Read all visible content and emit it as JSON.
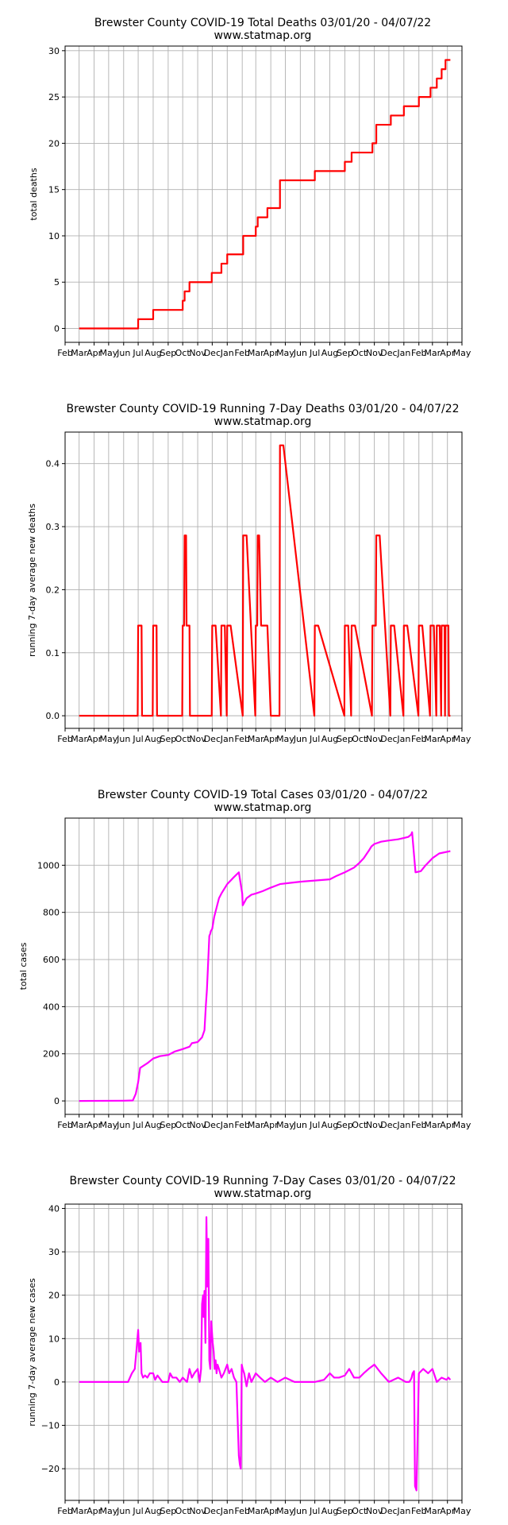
{
  "x_tick_labels": [
    "Feb",
    "Mar",
    "Apr",
    "May",
    "Jun",
    "Jul",
    "Aug",
    "Sep",
    "Oct",
    "Nov",
    "Dec",
    "Jan",
    "Feb",
    "Mar",
    "Apr",
    "May",
    "Jun",
    "Jul",
    "Aug",
    "Sep",
    "Oct",
    "Nov",
    "Dec",
    "Jan",
    "Feb",
    "Mar",
    "Apr",
    "May"
  ],
  "chart_data": [
    {
      "type": "line",
      "title": "Brewster County COVID-19 Total Deaths 03/01/20 - 04/07/22",
      "subtitle": "www.statmap.org",
      "ylabel": "total deaths",
      "xlabel": "",
      "x_range": [
        "2020-02-01",
        "2022-05-01"
      ],
      "ylim": [
        -1.5,
        30.5
      ],
      "yticks": [
        0,
        5,
        10,
        15,
        20,
        25,
        30
      ],
      "ytick_labels": [
        "0",
        "5",
        "10",
        "15",
        "20",
        "25",
        "30"
      ],
      "grid": true,
      "color": "#ff0000",
      "step": true,
      "series": [
        {
          "x": [
            "2020-03-01",
            "2020-07-01",
            "2020-08-01",
            "2020-10-01",
            "2020-10-05",
            "2020-10-15",
            "2020-11-30",
            "2020-12-20",
            "2021-01-01",
            "2021-02-03",
            "2021-03-01",
            "2021-03-05",
            "2021-03-25",
            "2021-04-20",
            "2021-07-01",
            "2021-09-01",
            "2021-09-15",
            "2021-10-28",
            "2021-11-05",
            "2021-12-05",
            "2022-01-01",
            "2022-02-01",
            "2022-02-25",
            "2022-03-10",
            "2022-03-20",
            "2022-03-28",
            "2022-04-07"
          ],
          "y": [
            0,
            1,
            2,
            3,
            4,
            5,
            6,
            7,
            8,
            10,
            11,
            12,
            13,
            16,
            17,
            18,
            19,
            20,
            22,
            23,
            24,
            25,
            26,
            27,
            28,
            29,
            29
          ]
        }
      ]
    },
    {
      "type": "line",
      "title": "Brewster County COVID-19 Running 7-Day Deaths 03/01/20 - 04/07/22",
      "subtitle": "www.statmap.org",
      "ylabel": "running 7-day average new deaths",
      "xlabel": "",
      "x_range": [
        "2020-02-01",
        "2022-05-01"
      ],
      "ylim": [
        -0.02,
        0.45
      ],
      "yticks": [
        0.0,
        0.1,
        0.2,
        0.3,
        0.4
      ],
      "ytick_labels": [
        "0.0",
        "0.1",
        "0.2",
        "0.3",
        "0.4"
      ],
      "grid": true,
      "color": "#ff0000",
      "step": false,
      "series": [
        {
          "x": [
            "2020-03-01",
            "2020-06-30",
            "2020-07-01",
            "2020-07-08",
            "2020-07-09",
            "2020-07-31",
            "2020-08-01",
            "2020-08-08",
            "2020-08-09",
            "2020-09-30",
            "2020-10-01",
            "2020-10-04",
            "2020-10-05",
            "2020-10-08",
            "2020-10-09",
            "2020-10-11",
            "2020-10-12",
            "2020-10-15",
            "2020-10-16",
            "2020-10-22",
            "2020-11-30",
            "2020-12-01",
            "2020-12-08",
            "2020-12-19",
            "2020-12-20",
            "2020-12-27",
            "2020-12-31",
            "2021-01-01",
            "2021-01-08",
            "2021-02-02",
            "2021-02-03",
            "2021-02-10",
            "2021-02-28",
            "2021-03-01",
            "2021-03-04",
            "2021-03-05",
            "2021-03-08",
            "2021-03-12",
            "2021-03-24",
            "2021-03-25",
            "2021-04-01",
            "2021-04-19",
            "2021-04-20",
            "2021-04-27",
            "2021-06-30",
            "2021-07-01",
            "2021-07-08",
            "2021-08-31",
            "2021-09-01",
            "2021-09-08",
            "2021-09-14",
            "2021-09-15",
            "2021-09-22",
            "2021-10-27",
            "2021-10-28",
            "2021-11-04",
            "2021-11-05",
            "2021-11-12",
            "2021-12-04",
            "2021-12-05",
            "2021-12-12",
            "2021-12-31",
            "2022-01-01",
            "2022-01-08",
            "2022-01-31",
            "2022-02-01",
            "2022-02-08",
            "2022-02-24",
            "2022-02-25",
            "2022-03-04",
            "2022-03-09",
            "2022-03-10",
            "2022-03-16",
            "2022-03-19",
            "2022-03-20",
            "2022-03-26",
            "2022-03-27",
            "2022-03-28",
            "2022-04-03",
            "2022-04-04",
            "2022-04-07"
          ],
          "y": [
            0,
            0,
            0.143,
            0.143,
            0,
            0,
            0.143,
            0.143,
            0,
            0,
            0.143,
            0.143,
            0.286,
            0.286,
            0.143,
            0.143,
            0.143,
            0.143,
            0,
            0,
            0,
            0.143,
            0.143,
            0,
            0.143,
            0.143,
            0,
            0.143,
            0.143,
            0,
            0.286,
            0.286,
            0,
            0.143,
            0.143,
            0.286,
            0.286,
            0.143,
            0.143,
            0.143,
            0,
            0,
            0.429,
            0.429,
            0,
            0.143,
            0.143,
            0,
            0.143,
            0.143,
            0,
            0.143,
            0.143,
            0,
            0.143,
            0.143,
            0.286,
            0.286,
            0,
            0.143,
            0.143,
            0,
            0.143,
            0.143,
            0,
            0.143,
            0.143,
            0,
            0.143,
            0.143,
            0,
            0.143,
            0.143,
            0,
            0.143,
            0.143,
            0,
            0.143,
            0.143,
            0,
            0
          ]
        }
      ]
    },
    {
      "type": "line",
      "title": "Brewster County COVID-19 Total Cases 03/01/20 - 04/07/22",
      "subtitle": "www.statmap.org",
      "ylabel": "total cases",
      "xlabel": "",
      "x_range": [
        "2020-02-01",
        "2022-05-01"
      ],
      "ylim": [
        -57,
        1200
      ],
      "yticks": [
        0,
        200,
        400,
        600,
        800,
        1000
      ],
      "ytick_labels": [
        "0",
        "200",
        "400",
        "600",
        "800",
        "1000"
      ],
      "grid": true,
      "color": "#ff00ff",
      "step": false,
      "series": [
        {
          "x": [
            "2020-03-01",
            "2020-06-01",
            "2020-06-20",
            "2020-06-26",
            "2020-07-01",
            "2020-07-05",
            "2020-07-20",
            "2020-08-01",
            "2020-08-15",
            "2020-09-01",
            "2020-09-15",
            "2020-10-01",
            "2020-10-15",
            "2020-10-20",
            "2020-11-01",
            "2020-11-10",
            "2020-11-15",
            "2020-11-18",
            "2020-11-20",
            "2020-11-22",
            "2020-11-25",
            "2020-11-27",
            "2020-11-28",
            "2020-12-01",
            "2020-12-05",
            "2020-12-10",
            "2020-12-15",
            "2020-12-20",
            "2021-01-01",
            "2021-01-15",
            "2021-01-25",
            "2021-02-01",
            "2021-02-02",
            "2021-02-10",
            "2021-02-20",
            "2021-03-01",
            "2021-03-15",
            "2021-04-01",
            "2021-04-20",
            "2021-05-10",
            "2021-06-01",
            "2021-07-01",
            "2021-08-01",
            "2021-08-15",
            "2021-09-01",
            "2021-09-20",
            "2021-10-01",
            "2021-10-10",
            "2021-10-20",
            "2021-10-26",
            "2021-11-01",
            "2021-11-15",
            "2021-12-01",
            "2021-12-20",
            "2022-01-10",
            "2022-01-16",
            "2022-01-18",
            "2022-01-25",
            "2022-02-05",
            "2022-02-15",
            "2022-03-01",
            "2022-03-15",
            "2022-04-07"
          ],
          "y": [
            0,
            1,
            2,
            30,
            80,
            140,
            160,
            180,
            190,
            195,
            210,
            220,
            230,
            245,
            250,
            270,
            300,
            410,
            470,
            560,
            700,
            710,
            720,
            730,
            780,
            820,
            860,
            880,
            920,
            950,
            970,
            880,
            830,
            860,
            875,
            880,
            890,
            905,
            920,
            925,
            930,
            935,
            940,
            955,
            970,
            990,
            1010,
            1030,
            1060,
            1080,
            1090,
            1100,
            1105,
            1110,
            1120,
            1130,
            1140,
            970,
            975,
            1000,
            1030,
            1050,
            1060
          ]
        }
      ]
    },
    {
      "type": "line",
      "title": "Brewster County COVID-19 Running 7-Day Cases 03/01/20 - 04/07/22",
      "subtitle": "www.statmap.org",
      "ylabel": "running 7-day average new cases",
      "xlabel": "",
      "x_range": [
        "2020-02-01",
        "2022-05-01"
      ],
      "ylim": [
        -27.3,
        41
      ],
      "yticks": [
        -20,
        -10,
        0,
        10,
        20,
        30,
        40
      ],
      "ytick_labels": [
        "−20",
        "−10",
        "0",
        "10",
        "20",
        "30",
        "40"
      ],
      "grid": true,
      "color": "#ff00ff",
      "step": false,
      "series": [
        {
          "x": [
            "2020-03-01",
            "2020-06-10",
            "2020-06-18",
            "2020-06-24",
            "2020-06-28",
            "2020-07-01",
            "2020-07-03",
            "2020-07-06",
            "2020-07-08",
            "2020-07-11",
            "2020-07-15",
            "2020-07-20",
            "2020-07-25",
            "2020-08-01",
            "2020-08-05",
            "2020-08-10",
            "2020-08-20",
            "2020-09-01",
            "2020-09-05",
            "2020-09-10",
            "2020-09-18",
            "2020-09-25",
            "2020-10-01",
            "2020-10-10",
            "2020-10-15",
            "2020-10-20",
            "2020-10-25",
            "2020-11-01",
            "2020-11-05",
            "2020-11-08",
            "2020-11-10",
            "2020-11-12",
            "2020-11-13",
            "2020-11-15",
            "2020-11-17",
            "2020-11-19",
            "2020-11-21",
            "2020-11-23",
            "2020-11-25",
            "2020-11-27",
            "2020-11-29",
            "2020-12-02",
            "2020-12-04",
            "2020-12-06",
            "2020-12-08",
            "2020-12-10",
            "2020-12-12",
            "2020-12-15",
            "2020-12-20",
            "2020-12-25",
            "2021-01-01",
            "2021-01-05",
            "2021-01-10",
            "2021-01-15",
            "2021-01-20",
            "2021-01-25",
            "2021-01-27",
            "2021-01-29",
            "2021-01-31",
            "2021-02-02",
            "2021-02-05",
            "2021-02-10",
            "2021-02-15",
            "2021-02-20",
            "2021-03-01",
            "2021-03-10",
            "2021-03-20",
            "2021-04-01",
            "2021-04-15",
            "2021-05-01",
            "2021-05-20",
            "2021-06-10",
            "2021-07-01",
            "2021-07-20",
            "2021-08-01",
            "2021-08-10",
            "2021-08-20",
            "2021-09-01",
            "2021-09-10",
            "2021-09-20",
            "2021-10-01",
            "2021-10-10",
            "2021-10-20",
            "2021-11-01",
            "2021-11-15",
            "2021-12-01",
            "2021-12-20",
            "2022-01-05",
            "2022-01-12",
            "2022-01-15",
            "2022-01-17",
            "2022-01-19",
            "2022-01-22",
            "2022-01-24",
            "2022-01-27",
            "2022-02-01",
            "2022-02-10",
            "2022-02-20",
            "2022-03-01",
            "2022-03-10",
            "2022-03-20",
            "2022-03-30",
            "2022-04-03",
            "2022-04-07"
          ],
          "y": [
            0,
            0,
            2,
            3,
            8,
            12,
            7,
            9,
            2,
            1,
            1.5,
            1,
            2,
            2,
            0.5,
            1.5,
            0,
            0,
            2,
            1,
            1,
            0,
            1,
            0,
            3,
            1,
            2,
            3,
            0,
            3,
            18,
            20,
            15,
            21,
            9,
            38,
            22,
            33,
            5,
            3,
            14,
            9,
            7,
            3,
            5,
            2,
            4,
            3,
            1,
            2,
            4,
            2,
            3,
            1,
            0,
            -17,
            -19,
            -20,
            4,
            3,
            2,
            -1,
            2,
            0,
            2,
            1,
            0,
            1,
            0,
            1,
            0,
            0,
            0,
            0.5,
            2,
            1,
            1,
            1.5,
            3,
            1,
            1,
            2,
            3,
            4,
            2,
            0,
            1,
            0,
            0,
            0.5,
            1,
            2,
            2.5,
            -24,
            -25,
            2,
            3,
            2,
            3,
            0,
            1,
            0.5,
            1,
            0.5
          ]
        }
      ]
    }
  ]
}
